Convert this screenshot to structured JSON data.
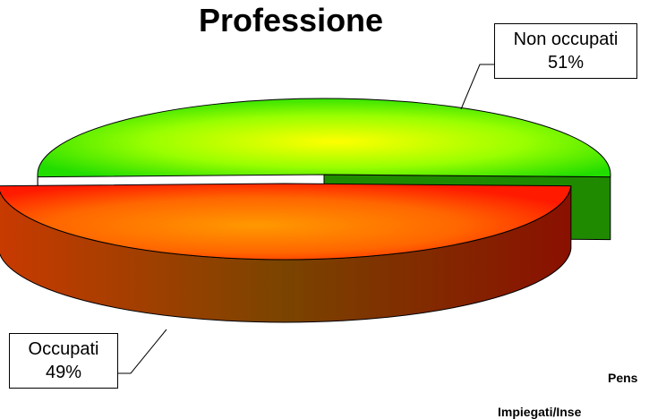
{
  "chart_data": {
    "type": "pie",
    "style": "3d-exploded",
    "title": "Professione",
    "slices": [
      {
        "label": "Non occupati",
        "value": 51,
        "value_label": "51%",
        "color_top": "#ffff00",
        "color_edge": "#33cc00"
      },
      {
        "label": "Occupati",
        "value": 49,
        "value_label": "49%",
        "color_top": "#ff9900",
        "color_edge": "#ff2200"
      }
    ],
    "background_fragments": [
      "Pens",
      "Impiegati/Inse"
    ]
  }
}
